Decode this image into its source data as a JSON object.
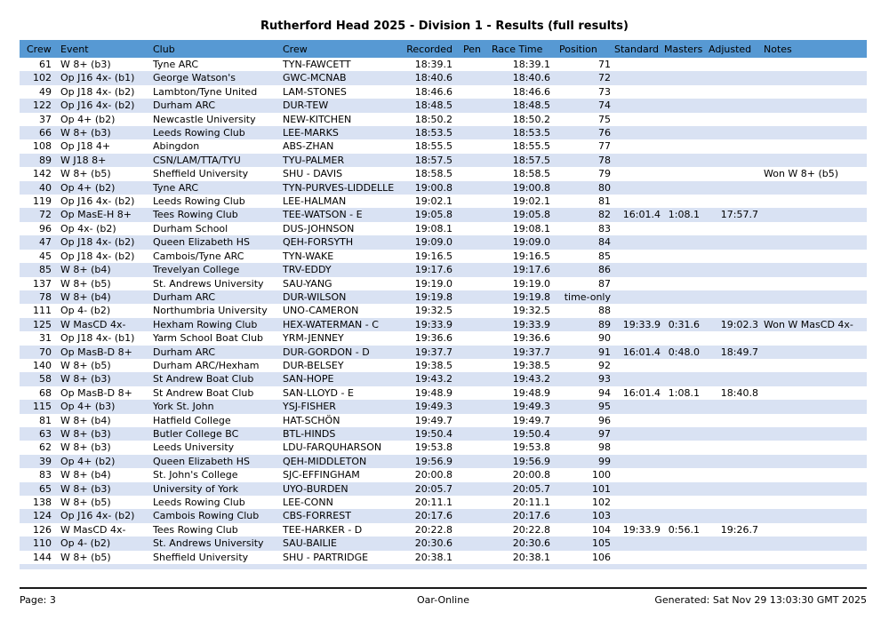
{
  "title": "Rutherford Head 2025 - Division 1 - Results (full results)",
  "colors": {
    "header_bg": "#5799d3",
    "row_stripe": "#d9e2f3"
  },
  "table": {
    "columns": [
      "Crew",
      "Event",
      "Club",
      "Crew",
      "Recorded",
      "Pen",
      "Race Time",
      "Position",
      "Standard",
      "Masters",
      "Adjusted",
      "Notes"
    ],
    "rows": [
      [
        "61",
        "W 8+ (b3)",
        "Tyne ARC",
        "TYN-FAWCETT",
        "18:39.1",
        "",
        "18:39.1",
        "71",
        "",
        "",
        "",
        ""
      ],
      [
        "102",
        "Op J16 4x- (b1)",
        "George Watson's",
        "GWC-MCNAB",
        "18:40.6",
        "",
        "18:40.6",
        "72",
        "",
        "",
        "",
        ""
      ],
      [
        "49",
        "Op J18 4x- (b2)",
        "Lambton/Tyne United",
        "LAM-STONES",
        "18:46.6",
        "",
        "18:46.6",
        "73",
        "",
        "",
        "",
        ""
      ],
      [
        "122",
        "Op J16 4x- (b2)",
        "Durham ARC",
        "DUR-TEW",
        "18:48.5",
        "",
        "18:48.5",
        "74",
        "",
        "",
        "",
        ""
      ],
      [
        "37",
        "Op 4+ (b2)",
        "Newcastle University",
        "NEW-KITCHEN",
        "18:50.2",
        "",
        "18:50.2",
        "75",
        "",
        "",
        "",
        ""
      ],
      [
        "66",
        "W 8+ (b3)",
        "Leeds Rowing Club",
        "LEE-MARKS",
        "18:53.5",
        "",
        "18:53.5",
        "76",
        "",
        "",
        "",
        ""
      ],
      [
        "108",
        "Op J18 4+",
        "Abingdon",
        "ABS-ZHAN",
        "18:55.5",
        "",
        "18:55.5",
        "77",
        "",
        "",
        "",
        ""
      ],
      [
        "89",
        "W J18 8+",
        "CSN/LAM/TTA/TYU",
        "TYU-PALMER",
        "18:57.5",
        "",
        "18:57.5",
        "78",
        "",
        "",
        "",
        ""
      ],
      [
        "142",
        "W 8+ (b5)",
        "Sheffield University",
        "SHU - DAVIS",
        "18:58.5",
        "",
        "18:58.5",
        "79",
        "",
        "",
        "",
        "Won W 8+ (b5)"
      ],
      [
        "40",
        "Op 4+ (b2)",
        "Tyne ARC",
        "TYN-PURVES-LIDDELLE",
        "19:00.8",
        "",
        "19:00.8",
        "80",
        "",
        "",
        "",
        ""
      ],
      [
        "119",
        "Op J16 4x- (b2)",
        "Leeds Rowing Club",
        "LEE-HALMAN",
        "19:02.1",
        "",
        "19:02.1",
        "81",
        "",
        "",
        "",
        ""
      ],
      [
        "72",
        "Op MasE-H 8+",
        "Tees Rowing Club",
        "TEE-WATSON - E",
        "19:05.8",
        "",
        "19:05.8",
        "82",
        "16:01.4",
        "1:08.1",
        "17:57.7",
        ""
      ],
      [
        "96",
        "Op 4x- (b2)",
        "Durham School",
        "DUS-JOHNSON",
        "19:08.1",
        "",
        "19:08.1",
        "83",
        "",
        "",
        "",
        ""
      ],
      [
        "47",
        "Op J18 4x- (b2)",
        "Queen Elizabeth HS",
        "QEH-FORSYTH",
        "19:09.0",
        "",
        "19:09.0",
        "84",
        "",
        "",
        "",
        ""
      ],
      [
        "45",
        "Op J18 4x- (b2)",
        "Cambois/Tyne ARC",
        "TYN-WAKE",
        "19:16.5",
        "",
        "19:16.5",
        "85",
        "",
        "",
        "",
        ""
      ],
      [
        "85",
        "W 8+ (b4)",
        "Trevelyan College",
        "TRV-EDDY",
        "19:17.6",
        "",
        "19:17.6",
        "86",
        "",
        "",
        "",
        ""
      ],
      [
        "137",
        "W 8+ (b5)",
        "St. Andrews University",
        "SAU-YANG",
        "19:19.0",
        "",
        "19:19.0",
        "87",
        "",
        "",
        "",
        ""
      ],
      [
        "78",
        "W 8+ (b4)",
        "Durham ARC",
        "DUR-WILSON",
        "19:19.8",
        "",
        "19:19.8",
        "time-only",
        "",
        "",
        "",
        ""
      ],
      [
        "111",
        "Op 4- (b2)",
        "Northumbria University",
        "UNO-CAMERON",
        "19:32.5",
        "",
        "19:32.5",
        "88",
        "",
        "",
        "",
        ""
      ],
      [
        "125",
        "W MasCD 4x-",
        "Hexham Rowing Club",
        "HEX-WATERMAN - C",
        "19:33.9",
        "",
        "19:33.9",
        "89",
        "19:33.9",
        "0:31.6",
        "19:02.3",
        "Won W MasCD 4x-"
      ],
      [
        "31",
        "Op J18 4x- (b1)",
        "Yarm School Boat Club",
        "YRM-JENNEY",
        "19:36.6",
        "",
        "19:36.6",
        "90",
        "",
        "",
        "",
        ""
      ],
      [
        "70",
        "Op MasB-D 8+",
        "Durham ARC",
        "DUR-GORDON - D",
        "19:37.7",
        "",
        "19:37.7",
        "91",
        "16:01.4",
        "0:48.0",
        "18:49.7",
        ""
      ],
      [
        "140",
        "W 8+ (b5)",
        "Durham ARC/Hexham",
        "DUR-BELSEY",
        "19:38.5",
        "",
        "19:38.5",
        "92",
        "",
        "",
        "",
        ""
      ],
      [
        "58",
        "W 8+ (b3)",
        "St Andrew Boat Club",
        "SAN-HOPE",
        "19:43.2",
        "",
        "19:43.2",
        "93",
        "",
        "",
        "",
        ""
      ],
      [
        "68",
        "Op MasB-D 8+",
        "St Andrew Boat Club",
        "SAN-LLOYD - E",
        "19:48.9",
        "",
        "19:48.9",
        "94",
        "16:01.4",
        "1:08.1",
        "18:40.8",
        ""
      ],
      [
        "115",
        "Op 4+ (b3)",
        "York St. John",
        "YSJ-FISHER",
        "19:49.3",
        "",
        "19:49.3",
        "95",
        "",
        "",
        "",
        ""
      ],
      [
        "81",
        "W 8+ (b4)",
        "Hatfield College",
        "HAT-SCHÖN",
        "19:49.7",
        "",
        "19:49.7",
        "96",
        "",
        "",
        "",
        ""
      ],
      [
        "63",
        "W 8+ (b3)",
        "Butler College BC",
        "BTL-HINDS",
        "19:50.4",
        "",
        "19:50.4",
        "97",
        "",
        "",
        "",
        ""
      ],
      [
        "62",
        "W 8+ (b3)",
        "Leeds University",
        "LDU-FARQUHARSON",
        "19:53.8",
        "",
        "19:53.8",
        "98",
        "",
        "",
        "",
        ""
      ],
      [
        "39",
        "Op 4+ (b2)",
        "Queen Elizabeth HS",
        "QEH-MIDDLETON",
        "19:56.9",
        "",
        "19:56.9",
        "99",
        "",
        "",
        "",
        ""
      ],
      [
        "83",
        "W 8+ (b4)",
        "St. John's College",
        "SJC-EFFINGHAM",
        "20:00.8",
        "",
        "20:00.8",
        "100",
        "",
        "",
        "",
        ""
      ],
      [
        "65",
        "W 8+ (b3)",
        "University of York",
        "UYO-BURDEN",
        "20:05.7",
        "",
        "20:05.7",
        "101",
        "",
        "",
        "",
        ""
      ],
      [
        "138",
        "W 8+ (b5)",
        "Leeds Rowing Club",
        "LEE-CONN",
        "20:11.1",
        "",
        "20:11.1",
        "102",
        "",
        "",
        "",
        ""
      ],
      [
        "124",
        "Op J16 4x- (b2)",
        "Cambois Rowing Club",
        "CBS-FORREST",
        "20:17.6",
        "",
        "20:17.6",
        "103",
        "",
        "",
        "",
        ""
      ],
      [
        "126",
        "W MasCD 4x-",
        "Tees Rowing Club",
        "TEE-HARKER - D",
        "20:22.8",
        "",
        "20:22.8",
        "104",
        "19:33.9",
        "0:56.1",
        "19:26.7",
        ""
      ],
      [
        "110",
        "Op 4- (b2)",
        "St. Andrews University",
        "SAU-BAILIE",
        "20:30.6",
        "",
        "20:30.6",
        "105",
        "",
        "",
        "",
        ""
      ],
      [
        "144",
        "W 8+ (b5)",
        "Sheffield University",
        "SHU - PARTRIDGE",
        "20:38.1",
        "",
        "20:38.1",
        "106",
        "",
        "",
        "",
        ""
      ]
    ]
  },
  "footer": {
    "page": "Page: 3",
    "center": "Oar-Online",
    "generated": "Generated: Sat Nov 29 13:03:30 GMT 2025"
  }
}
